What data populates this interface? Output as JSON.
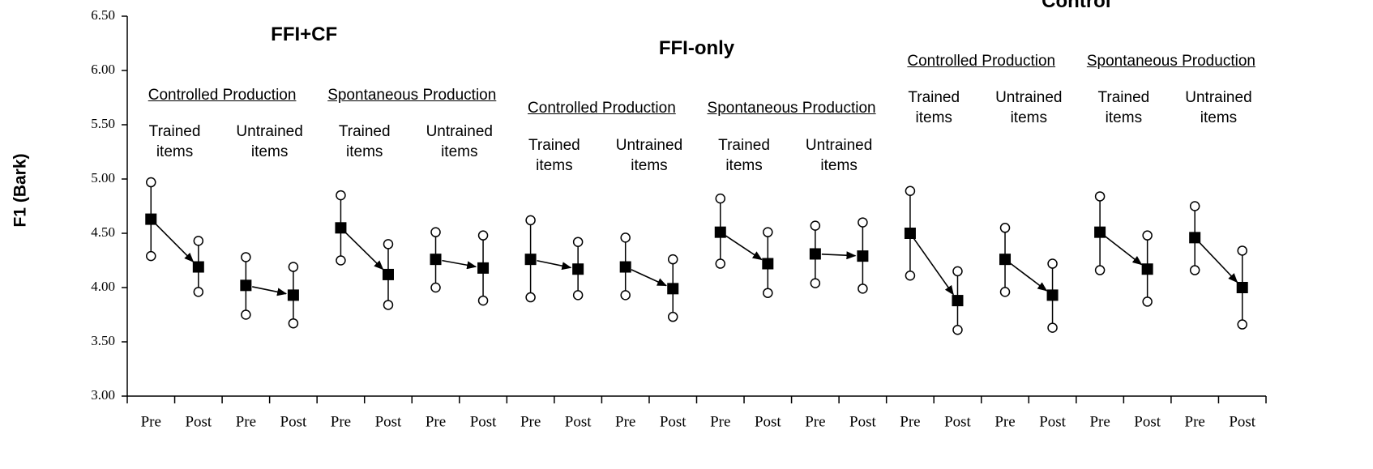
{
  "chart_data": {
    "type": "errorbar",
    "y_label": "F1 (Bark)",
    "ylim": [
      3,
      6.5
    ],
    "yticks": [
      {
        "value": 3,
        "label": "3.00"
      },
      {
        "value": 3.5,
        "label": "3.50"
      },
      {
        "value": 4,
        "label": "4.00"
      },
      {
        "value": 4.5,
        "label": "4.50"
      },
      {
        "value": 5,
        "label": "5.00"
      },
      {
        "value": 5.5,
        "label": "5.50"
      },
      {
        "value": 6,
        "label": "6.00"
      },
      {
        "value": 6.5,
        "label": "6.50"
      }
    ],
    "categories": [
      "Pre",
      "Post",
      "Pre",
      "Post",
      "Pre",
      "Post",
      "Pre",
      "Post",
      "Pre",
      "Post",
      "Pre",
      "Post",
      "Pre",
      "Post",
      "Pre",
      "Post",
      "Pre",
      "Post",
      "Pre",
      "Post",
      "Pre",
      "Post",
      "Pre",
      "Post"
    ],
    "values": [
      4.63,
      4.19,
      4.02,
      3.93,
      4.55,
      4.12,
      4.26,
      4.18,
      4.26,
      4.17,
      4.19,
      3.99,
      4.51,
      4.22,
      4.31,
      4.29,
      4.5,
      3.88,
      4.26,
      3.93,
      4.51,
      4.17,
      4.46,
      4.0
    ],
    "upper": [
      4.97,
      4.43,
      4.28,
      4.19,
      4.85,
      4.4,
      4.51,
      4.48,
      4.62,
      4.42,
      4.46,
      4.26,
      4.82,
      4.51,
      4.57,
      4.6,
      4.89,
      4.15,
      4.55,
      4.22,
      4.84,
      4.48,
      4.75,
      4.34
    ],
    "lower": [
      4.29,
      3.96,
      3.75,
      3.67,
      4.25,
      3.84,
      4.0,
      3.88,
      3.91,
      3.93,
      3.93,
      3.73,
      4.22,
      3.95,
      4.04,
      3.99,
      4.11,
      3.61,
      3.96,
      3.63,
      4.16,
      3.87,
      4.16,
      3.66
    ],
    "marker_color": "#000000",
    "groups": [
      {
        "name": "FFI+CF",
        "subgroups": [
          {
            "name": "Controlled Production",
            "items": [
              "Trained items",
              "Untrained items"
            ]
          },
          {
            "name": "Spontaneous Production",
            "items": [
              "Trained items",
              "Untrained items"
            ]
          }
        ]
      },
      {
        "name": "FFI-only",
        "subgroups": [
          {
            "name": "Controlled Production",
            "items": [
              "Trained items",
              "Untrained items"
            ]
          },
          {
            "name": "Spontaneous Production",
            "items": [
              "Trained items",
              "Untrained items"
            ]
          }
        ]
      },
      {
        "name": "Control",
        "subgroups": [
          {
            "name": "Controlled Production",
            "items": [
              "Trained items",
              "Untrained items"
            ]
          },
          {
            "name": "Spontaneous Production",
            "items": [
              "Trained items",
              "Untrained items"
            ]
          }
        ]
      }
    ]
  }
}
